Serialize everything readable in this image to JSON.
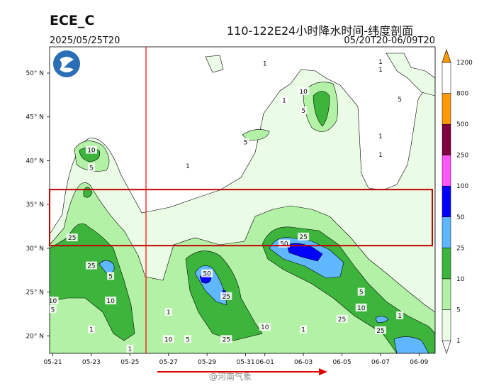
{
  "header": {
    "model": "ECE_C",
    "init_time": "2025/05/25T20",
    "title": "110-122E24小时降水时间-纬度剖面",
    "valid_range": "05/20T20-06/09T20"
  },
  "watermark": "@河南气象",
  "colors": {
    "levels_colors": [
      "#eafbe6",
      "#b3f2a6",
      "#3db53d",
      "#5fb8ff",
      "#0000ff",
      "#ff55ff",
      "#800040",
      "#ff9900"
    ],
    "highlight_box": "#c00000",
    "time_marker": "#ff0000",
    "arrow": "#e00000"
  },
  "chart_data": {
    "type": "heatmap",
    "title": "110-122E24小时降水时间-纬度剖面",
    "x_ticks": [
      "05-21",
      "05-23",
      "05-25",
      "05-27",
      "05-29",
      "05-31",
      "06-01",
      "06-03",
      "06-05",
      "06-07",
      "06-09"
    ],
    "y_ticks": [
      "20° N",
      "25° N",
      "30° N",
      "35° N",
      "40° N",
      "45° N",
      "50° N"
    ],
    "y_values": [
      20,
      25,
      30,
      35,
      40,
      45,
      50
    ],
    "xlim": [
      "05-20T20",
      "06-09T20"
    ],
    "ylim": [
      18,
      53
    ],
    "colorbar_levels": [
      1,
      5,
      10,
      25,
      50,
      100,
      250,
      500,
      800,
      1200
    ],
    "contour_labels": [
      {
        "text": "1",
        "date": "06-01",
        "lat": 51.1
      },
      {
        "text": "1",
        "date": "06-07",
        "lat": 50.4
      },
      {
        "text": "1",
        "date": "06-07",
        "lat": 51.3
      },
      {
        "text": "10",
        "date": "06-03",
        "lat": 47.9
      },
      {
        "text": "1",
        "date": "06-02",
        "lat": 46.9
      },
      {
        "text": "5",
        "date": "06-03",
        "lat": 45.7
      },
      {
        "text": "5",
        "date": "06-08",
        "lat": 47.0
      },
      {
        "text": "5",
        "date": "05-31",
        "lat": 42.1
      },
      {
        "text": "1",
        "date": "06-07",
        "lat": 42.8
      },
      {
        "text": "1",
        "date": "06-07",
        "lat": 40.7
      },
      {
        "text": "10",
        "date": "05-23",
        "lat": 41.2
      },
      {
        "text": "5",
        "date": "05-23",
        "lat": 39.2
      },
      {
        "text": "1",
        "date": "05-28",
        "lat": 39.4
      },
      {
        "text": "25",
        "date": "05-22",
        "lat": 31.2
      },
      {
        "text": "25",
        "date": "06-03",
        "lat": 31.3
      },
      {
        "text": "50",
        "date": "06-02",
        "lat": 30.5
      },
      {
        "text": "25",
        "date": "05-23",
        "lat": 28.0
      },
      {
        "text": "5",
        "date": "05-24",
        "lat": 26.8
      },
      {
        "text": "50",
        "date": "05-29",
        "lat": 27.1
      },
      {
        "text": "25",
        "date": "05-30",
        "lat": 24.5
      },
      {
        "text": "10",
        "date": "05-21",
        "lat": 24.0
      },
      {
        "text": "5",
        "date": "05-21",
        "lat": 23.0
      },
      {
        "text": "10",
        "date": "05-24",
        "lat": 24.0
      },
      {
        "text": "5",
        "date": "06-06",
        "lat": 25.0
      },
      {
        "text": "10",
        "date": "06-06",
        "lat": 23.2
      },
      {
        "text": "1",
        "date": "05-27",
        "lat": 22.7
      },
      {
        "text": "1",
        "date": "06-08",
        "lat": 22.3
      },
      {
        "text": "25",
        "date": "06-05",
        "lat": 21.9
      },
      {
        "text": "10",
        "date": "06-01",
        "lat": 21.0
      },
      {
        "text": "1",
        "date": "06-03",
        "lat": 20.7
      },
      {
        "text": "1",
        "date": "05-23",
        "lat": 20.7
      },
      {
        "text": "25",
        "date": "06-07",
        "lat": 20.6
      },
      {
        "text": "10",
        "date": "05-27",
        "lat": 19.6
      },
      {
        "text": "5",
        "date": "05-28",
        "lat": 19.6
      },
      {
        "text": "25",
        "date": "05-30",
        "lat": 19.6
      },
      {
        "text": "1",
        "date": "05-25",
        "lat": 18.5
      }
    ],
    "forecast_start_marker": "05-25T20",
    "highlight_band_lat": [
      30.3,
      36.7
    ]
  }
}
